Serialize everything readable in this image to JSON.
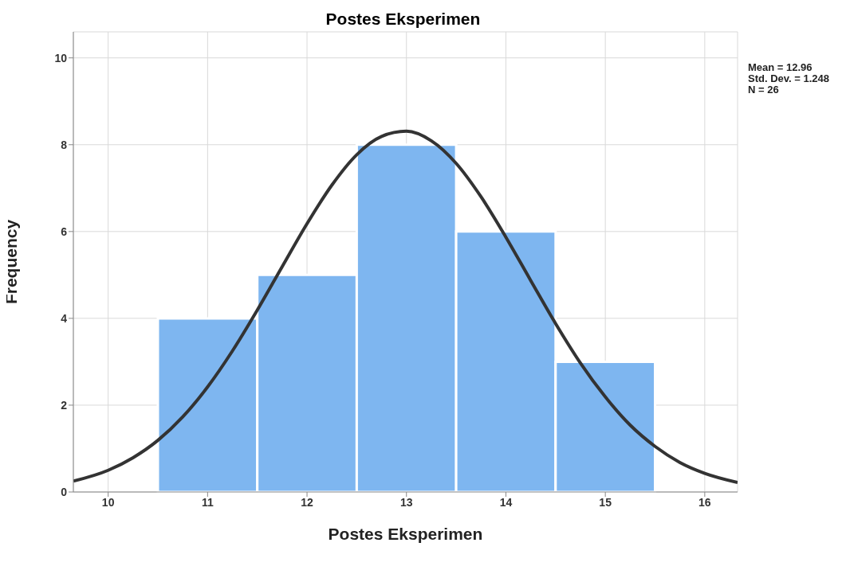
{
  "chart_data": {
    "type": "histogram",
    "title": "Postes Eksperimen",
    "xlabel": "Postes Eksperimen",
    "ylabel": "Frequency",
    "bins": [
      10.5,
      11.5,
      12.5,
      13.5,
      14.5,
      15.5
    ],
    "values": [
      4,
      5,
      8,
      6,
      3
    ],
    "color": "#7eb6f0",
    "series": [
      {
        "type": "line",
        "color": "#333333",
        "x": [
          9.65,
          10,
          10.25,
          10.5,
          10.75,
          11,
          11.25,
          11.5,
          11.75,
          12,
          12.25,
          12.5,
          12.75,
          13,
          13.25,
          13.5,
          13.75,
          14,
          14.25,
          14.5,
          14.75,
          15,
          15.25,
          15.5,
          15.75,
          16,
          16.33
        ],
        "values": [
          0.25,
          0.5,
          0.79,
          1.19,
          1.73,
          2.42,
          3.25,
          4.19,
          5.19,
          6.18,
          7.07,
          7.77,
          8.19,
          8.31,
          8.09,
          7.57,
          6.8,
          5.87,
          4.87,
          3.88,
          2.97,
          2.19,
          1.54,
          1.05,
          0.68,
          0.43,
          0.22
        ]
      }
    ],
    "annotations": [
      "Mean = 12.96",
      "Std. Dev. = 1.248",
      "N = 26"
    ],
    "xlim": [
      9.65,
      16.33
    ],
    "xticks": [
      10,
      11,
      12,
      13,
      14,
      15,
      16
    ],
    "ylim": [
      0,
      10.6
    ],
    "yticks": [
      0,
      2,
      4,
      6,
      8,
      10
    ],
    "grid": true
  }
}
